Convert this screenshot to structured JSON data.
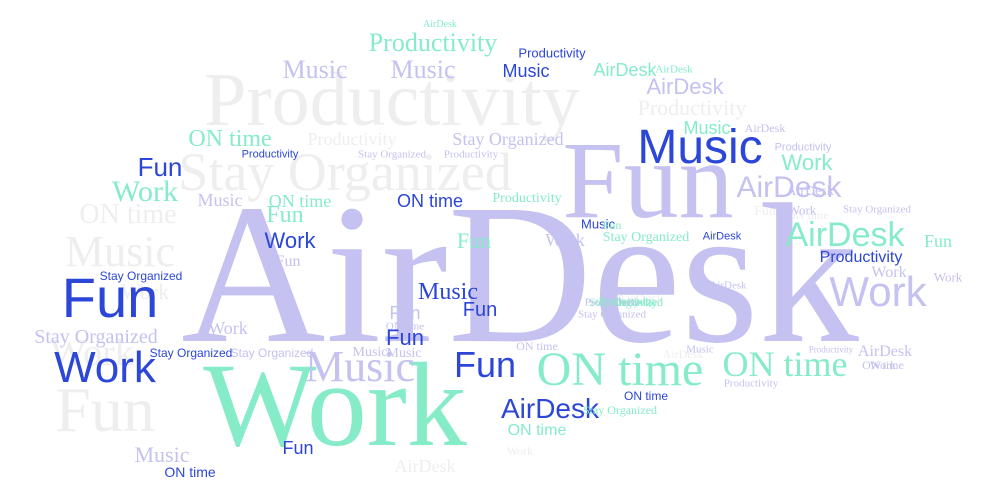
{
  "palette": {
    "faint": "#eeeeee",
    "light": "#e4e4e4",
    "lavender": "#c5c1f0",
    "aqua": "#86ecc8",
    "blue": "#2c46d8",
    "background": "#ffffff"
  },
  "words": [
    {
      "text": "AirDesk",
      "color": "lavender"
    },
    {
      "text": "Work",
      "color": "aqua"
    },
    {
      "text": "Fun",
      "color": "lavender"
    },
    {
      "text": "Productivity",
      "color": "faint"
    },
    {
      "text": "Stay Organized",
      "color": "faint"
    },
    {
      "text": "Music",
      "color": "blue"
    },
    {
      "text": "Fun",
      "color": "blue"
    },
    {
      "text": "Work",
      "color": "blue"
    },
    {
      "text": "ON time",
      "color": "aqua"
    },
    {
      "text": "Music",
      "color": "lavender"
    },
    {
      "text": "ON time",
      "color": "aqua"
    },
    {
      "text": "Fun",
      "color": "blue"
    },
    {
      "text": "AirDesk",
      "color": "blue"
    },
    {
      "text": "Work",
      "color": "lavender"
    },
    {
      "text": "AirDesk",
      "color": "aqua"
    },
    {
      "text": "AirDesk",
      "color": "lavender"
    },
    {
      "text": "Fun",
      "color": "faint"
    },
    {
      "text": "Music",
      "color": "faint"
    },
    {
      "text": "Work",
      "color": "faint"
    },
    {
      "text": "ON time",
      "color": "faint"
    },
    {
      "text": "Productivity",
      "color": "aqua"
    },
    {
      "text": "Music",
      "color": "lavender"
    },
    {
      "text": "Music",
      "color": "lavender"
    },
    {
      "text": "Music",
      "color": "blue"
    },
    {
      "text": "Productivity",
      "color": "blue"
    },
    {
      "text": "AirDesk",
      "color": "aqua"
    },
    {
      "text": "AirDesk",
      "color": "lavender"
    },
    {
      "text": "Productivity",
      "color": "faint"
    },
    {
      "text": "Music",
      "color": "aqua"
    },
    {
      "text": "Stay Organized",
      "color": "lavender"
    },
    {
      "text": "ON time",
      "color": "aqua"
    },
    {
      "text": "Productivity",
      "color": "faint"
    },
    {
      "text": "Fun",
      "color": "blue"
    },
    {
      "text": "Work",
      "color": "aqua"
    },
    {
      "text": "Work",
      "color": "aqua"
    },
    {
      "text": "Music",
      "color": "lavender"
    },
    {
      "text": "ON time",
      "color": "blue"
    },
    {
      "text": "Fun",
      "color": "aqua"
    },
    {
      "text": "ON time",
      "color": "aqua"
    },
    {
      "text": "Work",
      "color": "blue"
    },
    {
      "text": "Fun",
      "color": "lavender"
    },
    {
      "text": "Fun",
      "color": "aqua"
    },
    {
      "text": "Work",
      "color": "lavender"
    },
    {
      "text": "Stay Organized",
      "color": "aqua"
    },
    {
      "text": "Fun",
      "color": "aqua"
    },
    {
      "text": "Productivity",
      "color": "blue"
    },
    {
      "text": "Work",
      "color": "lavender"
    },
    {
      "text": "Work",
      "color": "lavender"
    },
    {
      "text": "Fun",
      "color": "lavender"
    },
    {
      "text": "Stay Organized",
      "color": "lavender"
    },
    {
      "text": "Work",
      "color": "lavender"
    },
    {
      "text": "Fun",
      "color": "blue"
    },
    {
      "text": "ON time",
      "color": "lavender"
    },
    {
      "text": "Stay Organized",
      "color": "blue"
    },
    {
      "text": "Stay Organized",
      "color": "aqua"
    },
    {
      "text": "Stay Organized",
      "color": "lavender"
    },
    {
      "text": "Music",
      "color": "lavender"
    },
    {
      "text": "Music",
      "color": "lavender"
    },
    {
      "text": "Fun",
      "color": "blue"
    },
    {
      "text": "AirDesk",
      "color": "lavender"
    },
    {
      "text": "ON time",
      "color": "lavender"
    },
    {
      "text": "Music",
      "color": "lavender"
    },
    {
      "text": "ON time",
      "color": "blue"
    },
    {
      "text": "Stay Organized",
      "color": "lavender"
    },
    {
      "text": "AirDesk",
      "color": "faint"
    },
    {
      "text": "Music",
      "color": "lavender"
    },
    {
      "text": "ON time",
      "color": "blue"
    },
    {
      "text": "Fun",
      "color": "blue"
    },
    {
      "text": "AirDesk",
      "color": "faint"
    },
    {
      "text": "Work",
      "color": "faint"
    },
    {
      "text": "ON time",
      "color": "aqua"
    },
    {
      "text": "Productivity",
      "color": "lavender"
    },
    {
      "text": "AirDesk",
      "color": "lavender"
    },
    {
      "text": "Work",
      "color": "lavender"
    },
    {
      "text": "Fun",
      "color": "faint"
    },
    {
      "text": "Productivity",
      "color": "aqua"
    },
    {
      "text": "AirDesk",
      "color": "lavender"
    },
    {
      "text": "Productivity",
      "color": "lavender"
    },
    {
      "text": "Productivity",
      "color": "blue"
    },
    {
      "text": "Productivity",
      "color": "lavender"
    },
    {
      "text": "Stay Organized",
      "color": "lavender"
    },
    {
      "text": "Work",
      "color": "faint"
    },
    {
      "text": "Music",
      "color": "blue"
    },
    {
      "text": "AirDesk",
      "color": "blue"
    },
    {
      "text": "Stay Organized",
      "color": "aqua"
    },
    {
      "text": "Stay Organized",
      "color": "blue"
    },
    {
      "text": "Work",
      "color": "lavender"
    },
    {
      "text": "ON time",
      "color": "lavender"
    },
    {
      "text": "AirDesk",
      "color": "aqua"
    },
    {
      "text": "Productivity",
      "color": "aqua"
    },
    {
      "text": "Productivity",
      "color": "lavender"
    },
    {
      "text": "Stay Organized",
      "color": "lavender"
    },
    {
      "text": "AirDesk",
      "color": "aqua"
    },
    {
      "text": "Productivity",
      "color": "aqua"
    },
    {
      "text": "Productivity",
      "color": "lavender"
    },
    {
      "text": "AirDesk",
      "color": "lavender"
    },
    {
      "text": "Fun",
      "color": "aqua"
    },
    {
      "text": "Music",
      "color": "blue"
    },
    {
      "text": "AirDesk",
      "color": "faint"
    },
    {
      "text": "ON time",
      "color": "faint"
    },
    {
      "text": "Work",
      "color": "faint"
    }
  ]
}
